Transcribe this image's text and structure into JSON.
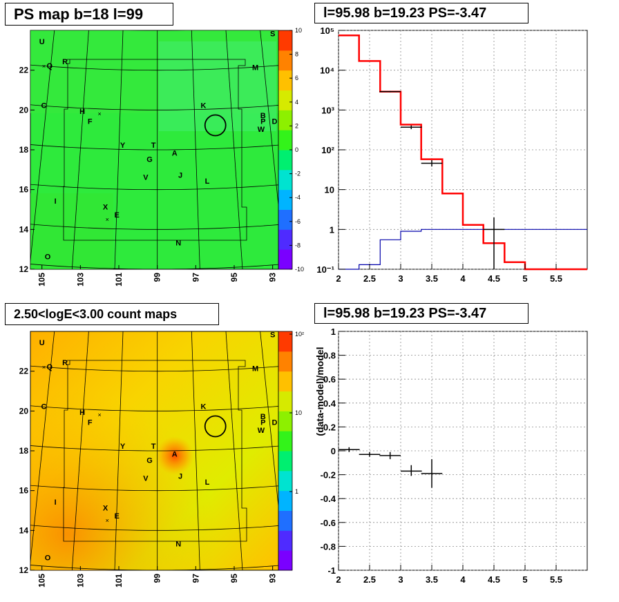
{
  "panels": {
    "top_left_title": "PS map b=18 l=99",
    "top_right_title": "l=95.98 b=19.23 PS=-3.47",
    "bottom_left_title": "2.50<logE<3.00 count maps",
    "bottom_right_title": "l=95.98 b=19.23 PS=-3.47"
  },
  "map": {
    "x_ticks": [
      "105",
      "103",
      "101",
      "99",
      "97",
      "95",
      "93"
    ],
    "y_ticks": [
      "12",
      "14",
      "16",
      "18",
      "20",
      "22"
    ],
    "source_labels": [
      {
        "label": "U",
        "l": 105.0,
        "b": 23.3
      },
      {
        "label": "Q",
        "l": 104.6,
        "b": 22.1
      },
      {
        "label": "R",
        "l": 103.8,
        "b": 22.3
      },
      {
        "label": "C",
        "l": 104.9,
        "b": 20.1
      },
      {
        "label": "H",
        "l": 102.9,
        "b": 19.8
      },
      {
        "label": "F",
        "l": 102.5,
        "b": 19.3
      },
      {
        "label": "K",
        "l": 96.6,
        "b": 20.1
      },
      {
        "label": "M",
        "l": 93.9,
        "b": 22.0
      },
      {
        "label": "S",
        "l": 93.0,
        "b": 23.7
      },
      {
        "label": "B",
        "l": 93.5,
        "b": 19.6
      },
      {
        "label": "P",
        "l": 93.5,
        "b": 19.3
      },
      {
        "label": "D",
        "l": 92.9,
        "b": 19.3
      },
      {
        "label": "W",
        "l": 93.6,
        "b": 18.9
      },
      {
        "label": "Y",
        "l": 100.8,
        "b": 18.1
      },
      {
        "label": "T",
        "l": 99.2,
        "b": 18.1
      },
      {
        "label": "A",
        "l": 98.1,
        "b": 17.7
      },
      {
        "label": "G",
        "l": 99.4,
        "b": 17.4
      },
      {
        "label": "J",
        "l": 97.8,
        "b": 16.6
      },
      {
        "label": "V",
        "l": 99.6,
        "b": 16.5
      },
      {
        "label": "L",
        "l": 96.4,
        "b": 16.3
      },
      {
        "label": "I",
        "l": 104.3,
        "b": 15.3
      },
      {
        "label": "X",
        "l": 101.7,
        "b": 15.0
      },
      {
        "label": "E",
        "l": 101.1,
        "b": 14.6
      },
      {
        "label": "N",
        "l": 97.9,
        "b": 13.2
      },
      {
        "label": "O",
        "l": 104.7,
        "b": 12.5
      }
    ],
    "circle_center": {
      "l": 95.98,
      "b": 19.23
    }
  },
  "ps_colorbar": {
    "ticks": [
      "10",
      "8",
      "6",
      "4",
      "2",
      "0",
      "-2",
      "-4",
      "-6",
      "-8",
      "-10"
    ],
    "colors": [
      "#7a00ff",
      "#4f2bff",
      "#1f6fff",
      "#00b4ff",
      "#00e3d0",
      "#00ef70",
      "#33f31a",
      "#8df000",
      "#d6ea00",
      "#ffc000",
      "#ff8200",
      "#ff3a00"
    ]
  },
  "count_colorbar": {
    "ticks": [
      "10²",
      "10",
      "1"
    ],
    "colors": [
      "#7a00ff",
      "#4f2bff",
      "#1f6fff",
      "#00b4ff",
      "#00e3d0",
      "#00ef70",
      "#33f31a",
      "#8df000",
      "#d6ea00",
      "#ffc000",
      "#ff8200",
      "#ff3a00"
    ]
  },
  "chart_data": [
    {
      "type": "line",
      "panel": "spectrum",
      "title": "l=95.98 b=19.23 PS=-3.47",
      "xlim": [
        2.0,
        6.0
      ],
      "ylim": [
        0.1,
        100000
      ],
      "y_log": true,
      "grid": true,
      "x_ticks": [
        "2",
        "2.5",
        "3",
        "3.5",
        "4",
        "4.5",
        "5",
        "5.5"
      ],
      "y_ticks": [
        "10⁵",
        "10⁴",
        "10³",
        "10²",
        "10",
        "1",
        "10⁻¹"
      ],
      "series": [
        {
          "color": "#ff0000",
          "style": "step",
          "bins": [
            2.0,
            2.33,
            2.67,
            3.0,
            3.33,
            3.67,
            4.0,
            4.33,
            4.67,
            5.0,
            5.33,
            5.67,
            6.0
          ],
          "values": [
            75000,
            17000,
            2900,
            430,
            58,
            8,
            1.3,
            0.45,
            0.15,
            0.1,
            0.1,
            0.1
          ]
        },
        {
          "color": "#0000aa",
          "style": "step",
          "bins": [
            2.0,
            2.33,
            2.67,
            3.0,
            3.33,
            3.67,
            4.0,
            4.33,
            4.67,
            5.0,
            5.33,
            5.67,
            6.0
          ],
          "values": [
            0.1,
            0.13,
            0.55,
            0.9,
            1.0,
            1.0,
            1.0,
            1.0,
            1.0,
            1.0,
            1.0,
            1.0
          ]
        },
        {
          "color": "#000000",
          "style": "points",
          "points": [
            {
              "x": 2.83,
              "xerr": 0.17,
              "y": 2900,
              "ylo": 2800,
              "yhi": 3000
            },
            {
              "x": 3.17,
              "xerr": 0.17,
              "y": 370,
              "ylo": 330,
              "yhi": 410
            },
            {
              "x": 3.5,
              "xerr": 0.17,
              "y": 46,
              "ylo": 38,
              "yhi": 55
            },
            {
              "x": 4.5,
              "xerr": 0.17,
              "y": 1.0,
              "ylo": 0.1,
              "yhi": 2.0
            }
          ]
        }
      ]
    },
    {
      "type": "scatter",
      "panel": "residuals",
      "title": "l=95.98 b=19.23 PS=-3.47",
      "ylabel": "(data-model)/model",
      "xlim": [
        2.0,
        6.0
      ],
      "ylim": [
        -1.0,
        1.0
      ],
      "grid": true,
      "x_ticks": [
        "2",
        "2.5",
        "3",
        "3.5",
        "4",
        "4.5",
        "5",
        "5.5"
      ],
      "y_ticks": [
        "1",
        "0.8",
        "0.6",
        "0.4",
        "0.2",
        "0",
        "-0.2",
        "-0.4",
        "-0.6",
        "-0.8",
        "-1"
      ],
      "points": [
        {
          "x": 2.17,
          "xerr": 0.17,
          "y": 0.01,
          "ylo": -0.01,
          "yhi": 0.03
        },
        {
          "x": 2.5,
          "xerr": 0.17,
          "y": -0.03,
          "ylo": -0.05,
          "yhi": -0.01
        },
        {
          "x": 2.83,
          "xerr": 0.17,
          "y": -0.04,
          "ylo": -0.07,
          "yhi": -0.01
        },
        {
          "x": 3.17,
          "xerr": 0.17,
          "y": -0.17,
          "ylo": -0.21,
          "yhi": -0.12
        },
        {
          "x": 3.5,
          "xerr": 0.17,
          "y": -0.19,
          "ylo": -0.31,
          "yhi": -0.07
        }
      ]
    }
  ]
}
